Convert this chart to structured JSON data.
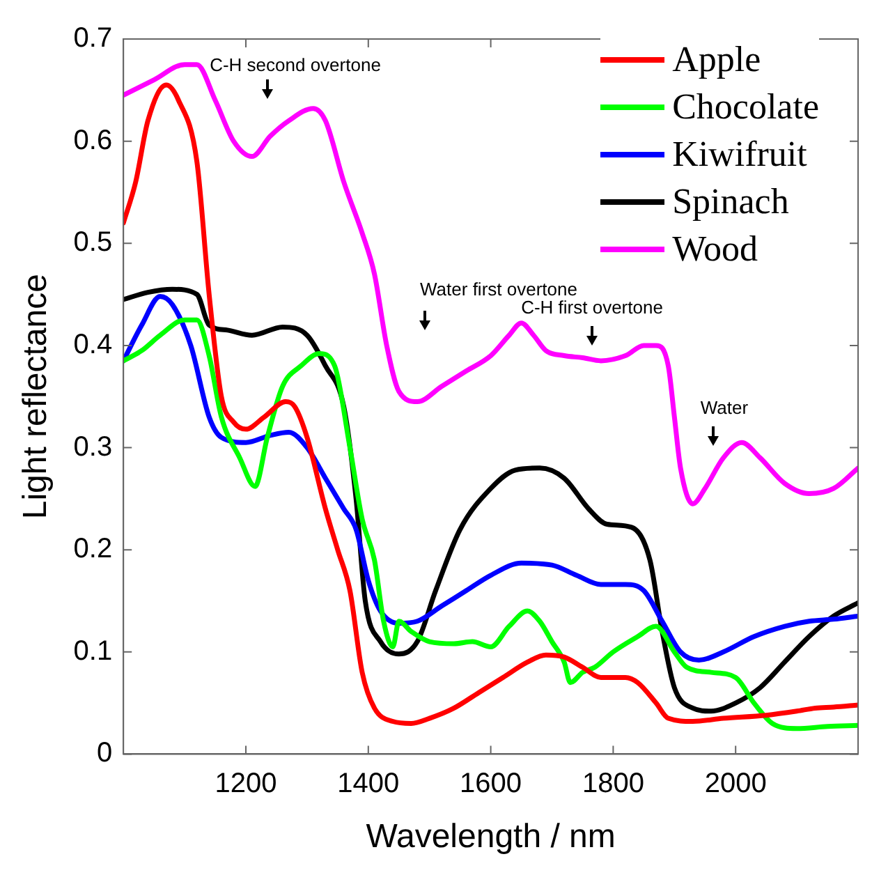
{
  "chart_data": {
    "type": "line",
    "xlabel": "Wavelength / nm",
    "ylabel": "Light reflectance",
    "xlim": [
      1000,
      2200
    ],
    "xticks": [
      1200,
      1400,
      1600,
      1800,
      2000
    ],
    "ylim": [
      0,
      0.7
    ],
    "yticks": [
      0,
      0.1,
      0.2,
      0.3,
      0.4,
      0.5,
      0.6,
      0.7
    ],
    "grid": false,
    "legend": "top right",
    "marker": "none",
    "line_style": "solid",
    "annotations": [
      "C-H second overtone",
      "Water first overtone",
      "C-H first overtone",
      "Water"
    ],
    "series": [
      {
        "name": "Apple",
        "color": "#ff0000",
        "x": [
          1000,
          1020,
          1040,
          1070,
          1090,
          1120,
          1140,
          1160,
          1180,
          1200,
          1230,
          1265,
          1280,
          1300,
          1330,
          1350,
          1370,
          1390,
          1410,
          1440,
          1470,
          1500,
          1540,
          1580,
          1620,
          1660,
          1690,
          1720,
          1750,
          1780,
          1820,
          1840,
          1870,
          1890,
          1930,
          1980,
          2050,
          2100,
          2130,
          2160,
          2200
        ],
        "values": [
          0.52,
          0.56,
          0.62,
          0.655,
          0.64,
          0.58,
          0.45,
          0.35,
          0.325,
          0.318,
          0.33,
          0.345,
          0.34,
          0.31,
          0.24,
          0.2,
          0.16,
          0.08,
          0.045,
          0.032,
          0.03,
          0.035,
          0.045,
          0.06,
          0.075,
          0.09,
          0.097,
          0.095,
          0.085,
          0.075,
          0.075,
          0.07,
          0.05,
          0.035,
          0.032,
          0.035,
          0.038,
          0.042,
          0.045,
          0.046,
          0.048
        ]
      },
      {
        "name": "Chocolate",
        "color": "#00ff00",
        "x": [
          1000,
          1030,
          1060,
          1100,
          1120,
          1140,
          1160,
          1190,
          1215,
          1235,
          1260,
          1290,
          1320,
          1345,
          1370,
          1390,
          1410,
          1425,
          1440,
          1450,
          1470,
          1500,
          1540,
          1570,
          1600,
          1630,
          1660,
          1680,
          1700,
          1720,
          1730,
          1750,
          1770,
          1800,
          1840,
          1870,
          1900,
          1920,
          1960,
          2000,
          2030,
          2060,
          2100,
          2150,
          2200
        ],
        "values": [
          0.385,
          0.395,
          0.41,
          0.425,
          0.425,
          0.39,
          0.33,
          0.29,
          0.262,
          0.31,
          0.36,
          0.38,
          0.392,
          0.38,
          0.3,
          0.23,
          0.19,
          0.13,
          0.105,
          0.13,
          0.12,
          0.11,
          0.108,
          0.11,
          0.105,
          0.125,
          0.14,
          0.13,
          0.11,
          0.09,
          0.07,
          0.08,
          0.085,
          0.1,
          0.115,
          0.125,
          0.1,
          0.085,
          0.08,
          0.075,
          0.05,
          0.03,
          0.025,
          0.027,
          0.028
        ]
      },
      {
        "name": "Kiwifruit",
        "color": "#0000ff",
        "x": [
          1000,
          1030,
          1060,
          1080,
          1110,
          1140,
          1160,
          1200,
          1240,
          1270,
          1300,
          1330,
          1360,
          1380,
          1400,
          1420,
          1450,
          1480,
          1520,
          1560,
          1600,
          1650,
          1700,
          1740,
          1780,
          1820,
          1850,
          1880,
          1910,
          1940,
          1980,
          2030,
          2080,
          2120,
          2160,
          2200
        ],
        "values": [
          0.385,
          0.42,
          0.448,
          0.44,
          0.4,
          0.33,
          0.31,
          0.305,
          0.312,
          0.315,
          0.3,
          0.27,
          0.24,
          0.22,
          0.17,
          0.14,
          0.128,
          0.13,
          0.145,
          0.16,
          0.175,
          0.187,
          0.185,
          0.175,
          0.166,
          0.166,
          0.16,
          0.13,
          0.1,
          0.092,
          0.1,
          0.115,
          0.125,
          0.13,
          0.132,
          0.135
        ]
      },
      {
        "name": "Spinach",
        "color": "#000000",
        "x": [
          1000,
          1040,
          1080,
          1120,
          1140,
          1170,
          1210,
          1260,
          1300,
          1330,
          1360,
          1380,
          1395,
          1420,
          1450,
          1480,
          1510,
          1550,
          1600,
          1640,
          1680,
          1720,
          1760,
          1790,
          1830,
          1860,
          1880,
          1900,
          1930,
          1960,
          2000,
          2040,
          2080,
          2120,
          2160,
          2200
        ],
        "values": [
          0.445,
          0.452,
          0.455,
          0.45,
          0.42,
          0.415,
          0.41,
          0.418,
          0.41,
          0.38,
          0.34,
          0.25,
          0.15,
          0.11,
          0.098,
          0.11,
          0.16,
          0.22,
          0.26,
          0.278,
          0.28,
          0.27,
          0.24,
          0.225,
          0.222,
          0.19,
          0.12,
          0.065,
          0.045,
          0.042,
          0.05,
          0.065,
          0.09,
          0.115,
          0.135,
          0.148
        ]
      },
      {
        "name": "Wood",
        "color": "#ff00ff",
        "x": [
          1000,
          1050,
          1100,
          1120,
          1150,
          1180,
          1210,
          1240,
          1270,
          1310,
          1330,
          1360,
          1390,
          1410,
          1430,
          1450,
          1480,
          1520,
          1560,
          1600,
          1630,
          1650,
          1670,
          1690,
          1720,
          1750,
          1780,
          1820,
          1850,
          1870,
          1890,
          1900,
          1910,
          1930,
          1950,
          1980,
          2010,
          2040,
          2080,
          2120,
          2160,
          2200
        ],
        "values": [
          0.645,
          0.66,
          0.675,
          0.675,
          0.64,
          0.6,
          0.585,
          0.605,
          0.62,
          0.632,
          0.62,
          0.56,
          0.51,
          0.47,
          0.4,
          0.355,
          0.345,
          0.36,
          0.375,
          0.39,
          0.41,
          0.422,
          0.41,
          0.395,
          0.39,
          0.388,
          0.385,
          0.39,
          0.4,
          0.4,
          0.38,
          0.33,
          0.28,
          0.245,
          0.26,
          0.29,
          0.305,
          0.29,
          0.265,
          0.255,
          0.26,
          0.28
        ]
      }
    ]
  }
}
